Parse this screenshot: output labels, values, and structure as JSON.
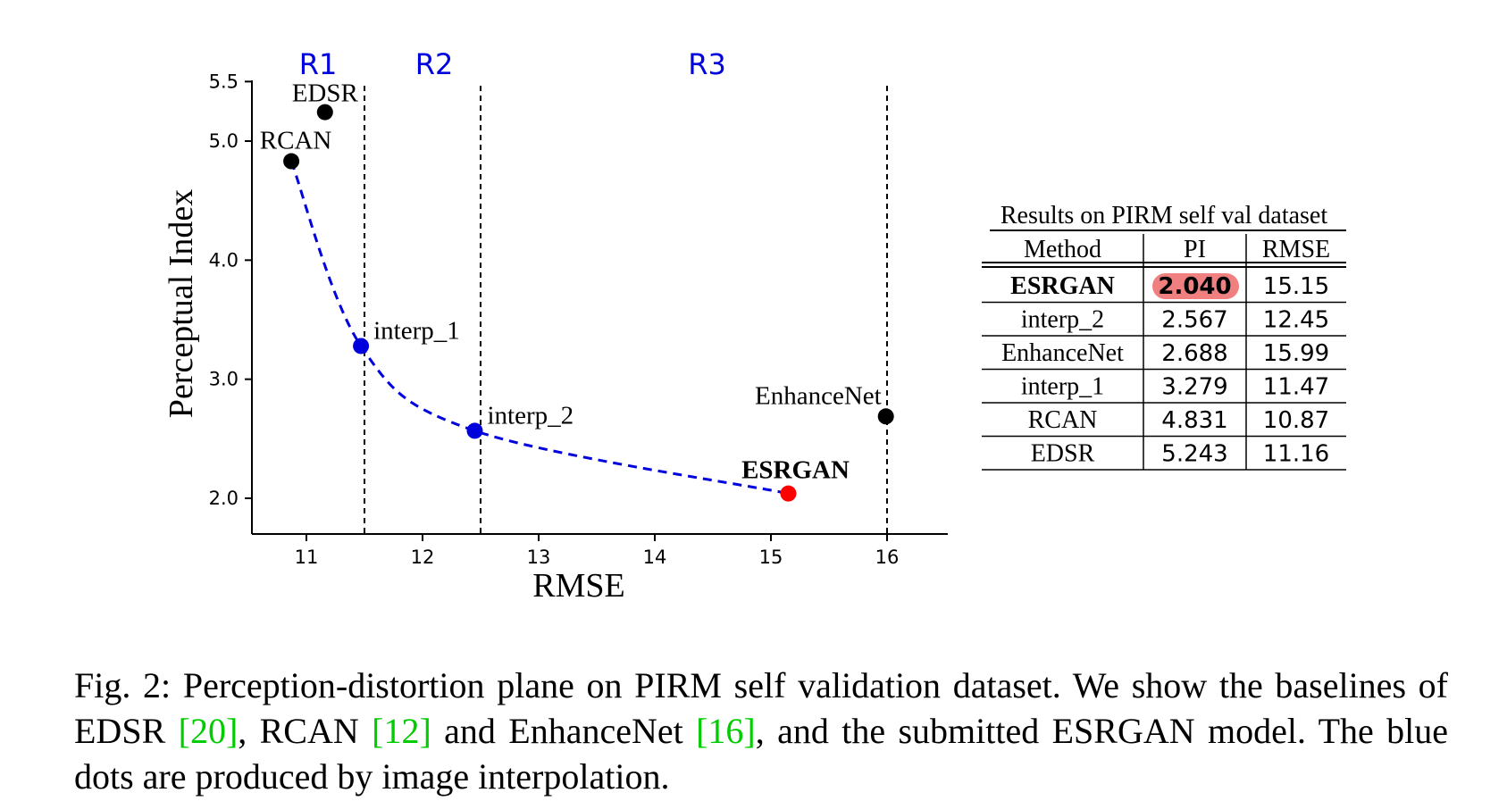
{
  "chart_data": {
    "type": "scatter",
    "xlabel": "RMSE",
    "ylabel": "Perceptual Index",
    "xlim": [
      10.5,
      16.5
    ],
    "ylim": [
      1.7,
      5.5
    ],
    "x_ticks": [
      11,
      12,
      13,
      14,
      15,
      16
    ],
    "y_ticks": [
      2.0,
      3.0,
      4.0,
      5.0,
      5.5
    ],
    "y_tick_labels": [
      "2.0",
      "3.0",
      "4.0",
      "5.0",
      "5.5"
    ],
    "points": [
      {
        "label": "EDSR",
        "x": 11.16,
        "y": 5.243,
        "color": "#000000"
      },
      {
        "label": "RCAN",
        "x": 10.87,
        "y": 4.831,
        "color": "#000000"
      },
      {
        "label": "interp_1",
        "x": 11.47,
        "y": 3.279,
        "color": "#0000dd"
      },
      {
        "label": "interp_2",
        "x": 12.45,
        "y": 2.567,
        "color": "#0000dd"
      },
      {
        "label": "ESRGAN",
        "x": 15.15,
        "y": 2.04,
        "color": "#ff0000",
        "bold": true
      },
      {
        "label": "EnhanceNet",
        "x": 15.99,
        "y": 2.688,
        "color": "#000000"
      }
    ],
    "curve": {
      "style": "dashed",
      "color": "#0000dd",
      "through": [
        "RCAN",
        "interp_1",
        "interp_2",
        "ESRGAN"
      ]
    },
    "region_lines_x": [
      11.5,
      12.5,
      16.0
    ],
    "regions": [
      {
        "label": "R1",
        "x": 11.1
      },
      {
        "label": "R2",
        "x": 12.1
      },
      {
        "label": "R3",
        "x": 14.45
      }
    ],
    "region_color": "#0000dd"
  },
  "table": {
    "title": "Results on PIRM self  val dataset",
    "columns": [
      "Method",
      "PI",
      "RMSE"
    ],
    "rows": [
      {
        "method": "ESRGAN",
        "pi": "2.040",
        "rmse": "15.15",
        "highlight": true
      },
      {
        "method": "interp_2",
        "pi": "2.567",
        "rmse": "12.45"
      },
      {
        "method": "EnhanceNet",
        "pi": "2.688",
        "rmse": "15.99"
      },
      {
        "method": "interp_1",
        "pi": "3.279",
        "rmse": "11.47"
      },
      {
        "method": "RCAN",
        "pi": "4.831",
        "rmse": "10.87"
      },
      {
        "method": "EDSR",
        "pi": "5.243",
        "rmse": "11.16"
      }
    ],
    "highlight_color": "#f08080"
  },
  "caption": {
    "prefix": "Fig. 2: Perception-distortion plane on PIRM self validation dataset. We show the baselines of EDSR ",
    "ref1": "[20]",
    "mid1": ", RCAN ",
    "ref2": "[12]",
    "mid2": " and EnhanceNet ",
    "ref3": "[16]",
    "suffix": ", and the submitted ESRGAN model. The blue dots are produced by image interpolation."
  }
}
